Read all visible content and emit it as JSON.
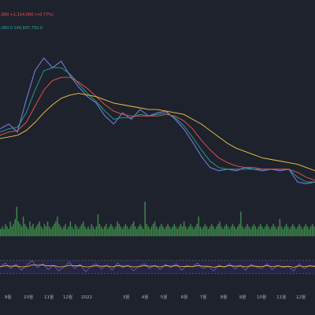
{
  "header": {
    "line1": ",000  +1,114,000 (+0.77%)",
    "line2": ",080.0  146,897,750.0"
  },
  "colors": {
    "background": "#1e222d",
    "price": "#6f7fd8",
    "ma_short": "#26a69a",
    "ma_mid": "#ef5350",
    "ma_long": "#f5c542",
    "volume": "#3d8c4a",
    "rsi": "#7e57c2",
    "rsi_signal": "#f5c542",
    "rsi_band": "#2a2a55",
    "header_red": "#ef5350",
    "header_green": "#26a69a"
  },
  "chart_data": [
    {
      "type": "line",
      "panel": "price",
      "x": [
        "2021-09",
        "2021-09-15",
        "2021-10",
        "2021-10-10",
        "2021-10-20",
        "2021-11",
        "2021-11-08",
        "2021-11-15",
        "2021-11-22",
        "2021-12",
        "2021-12-10",
        "2021-12-20",
        "2022-01",
        "2022-01-10",
        "2022-01-20",
        "2022-02",
        "2022-02-15",
        "2022-03",
        "2022-03-15",
        "2022-04",
        "2022-04-15",
        "2022-05",
        "2022-05-15",
        "2022-06",
        "2022-06-15",
        "2022-07",
        "2022-07-15",
        "2022-08",
        "2022-08-15",
        "2022-09",
        "2022-09-15",
        "2022-10",
        "2022-10-15",
        "2022-11",
        "2022-11-15",
        "2022-12",
        "2022-12-20"
      ],
      "series": [
        {
          "values": [
            52,
            55,
            50,
            70,
            88,
            96,
            90,
            94,
            85,
            78,
            72,
            68,
            60,
            55,
            62,
            58,
            64,
            60,
            62,
            63,
            58,
            52,
            44,
            35,
            28,
            26,
            27,
            26,
            28,
            27,
            26,
            27,
            26,
            27,
            19,
            18,
            19
          ]
        },
        {
          "values": [
            50,
            52,
            53,
            62,
            76,
            88,
            90,
            90,
            86,
            80,
            74,
            69,
            63,
            58,
            59,
            59,
            61,
            60,
            61,
            62,
            59,
            54,
            47,
            39,
            32,
            28,
            27,
            27,
            27,
            27,
            27,
            27,
            27,
            27,
            22,
            19,
            19
          ]
        },
        {
          "values": [
            48,
            50,
            51,
            56,
            66,
            76,
            82,
            84,
            84,
            81,
            77,
            72,
            67,
            63,
            61,
            60,
            60,
            60,
            60,
            61,
            60,
            57,
            52,
            45,
            39,
            34,
            31,
            29,
            28,
            28,
            27,
            27,
            27,
            27,
            25,
            22,
            20
          ]
        },
        {
          "values": [
            46,
            47,
            48,
            51,
            56,
            62,
            67,
            71,
            73,
            74,
            73,
            72,
            70,
            68,
            67,
            66,
            65,
            64,
            64,
            63,
            62,
            61,
            58,
            55,
            51,
            47,
            43,
            40,
            38,
            36,
            34,
            33,
            32,
            31,
            30,
            28,
            26
          ]
        }
      ],
      "ylim": [
        0,
        110
      ]
    },
    {
      "type": "bar",
      "panel": "volume",
      "values": [
        3,
        4,
        3,
        5,
        4,
        3,
        6,
        4,
        5,
        7,
        12,
        6,
        5,
        4,
        8,
        5,
        4,
        3,
        6,
        4,
        5,
        3,
        4,
        5,
        6,
        4,
        3,
        5,
        4,
        6,
        4,
        3,
        4,
        5,
        6,
        8,
        5,
        4,
        3,
        4,
        5,
        3,
        4,
        6,
        4,
        3,
        5,
        4,
        3,
        4,
        5,
        6,
        4,
        3,
        4,
        3,
        5,
        4,
        3,
        4,
        9,
        5,
        4,
        3,
        4,
        5,
        3,
        4,
        5,
        4,
        3,
        4,
        6,
        5,
        4,
        3,
        4,
        5,
        4,
        3,
        4,
        5,
        6,
        4,
        3,
        4,
        5,
        4,
        3,
        14,
        5,
        4,
        3,
        4,
        5,
        6,
        4,
        3,
        4,
        5,
        4,
        3,
        4,
        5,
        4,
        3,
        4,
        5,
        4,
        3,
        4,
        5,
        4,
        6,
        4,
        3,
        4,
        5,
        4,
        3,
        4,
        5,
        8,
        4,
        3,
        4,
        5,
        4,
        3,
        4,
        5,
        4,
        3,
        4,
        5,
        6,
        4,
        3,
        4,
        5,
        4,
        3,
        4,
        5,
        4,
        3,
        4,
        5,
        10,
        4,
        3,
        4,
        5,
        4,
        3,
        4,
        5,
        4,
        3,
        4,
        5,
        4,
        3,
        4,
        5,
        4,
        3,
        4,
        5,
        4,
        3,
        4,
        7,
        4,
        3,
        4,
        5,
        4,
        3,
        4,
        5,
        4,
        3,
        4,
        5,
        4,
        3,
        4,
        5,
        4,
        3,
        4,
        5,
        4
      ],
      "ylim": [
        0,
        16
      ]
    },
    {
      "type": "line",
      "panel": "rsi",
      "series": [
        {
          "values": [
            50,
            62,
            45,
            58,
            40,
            55,
            70,
            48,
            60,
            42,
            55,
            38,
            50,
            65,
            45,
            58,
            35,
            52,
            60,
            44,
            56,
            40,
            62,
            48,
            55,
            38,
            52,
            60,
            45,
            55,
            42,
            58,
            48,
            60,
            40,
            55,
            50,
            62,
            45,
            52,
            38,
            56,
            48,
            60,
            44,
            55,
            40,
            58,
            50,
            45,
            60,
            42,
            55,
            48,
            52,
            38,
            60,
            45,
            55,
            50
          ]
        },
        {
          "values": [
            50,
            54,
            52,
            53,
            50,
            51,
            56,
            55,
            56,
            53,
            54,
            50,
            51,
            55,
            53,
            54,
            50,
            51,
            54,
            52,
            53,
            50,
            54,
            52,
            53,
            50,
            51,
            54,
            52,
            53,
            50,
            54,
            52,
            54,
            51,
            52,
            51,
            54,
            52,
            52,
            49,
            52,
            51,
            54,
            52,
            53,
            50,
            53,
            52,
            51,
            54,
            51,
            53,
            51,
            52,
            49,
            53,
            51,
            53,
            52
          ]
        }
      ],
      "ylim": [
        0,
        100
      ],
      "band": [
        30,
        70
      ]
    }
  ],
  "xaxis": {
    "ticks": [
      {
        "label": "9월",
        "pos": 0.025
      },
      {
        "label": "10월",
        "pos": 0.09
      },
      {
        "label": "11월",
        "pos": 0.155
      },
      {
        "label": "12월",
        "pos": 0.215
      },
      {
        "label": "2022",
        "pos": 0.275
      },
      {
        "label": "3월",
        "pos": 0.4
      },
      {
        "label": "4월",
        "pos": 0.46
      },
      {
        "label": "5월",
        "pos": 0.52
      },
      {
        "label": "6월",
        "pos": 0.585
      },
      {
        "label": "7월",
        "pos": 0.645
      },
      {
        "label": "8월",
        "pos": 0.71
      },
      {
        "label": "9월",
        "pos": 0.77
      },
      {
        "label": "10월",
        "pos": 0.83
      },
      {
        "label": "11월",
        "pos": 0.893
      },
      {
        "label": "12월",
        "pos": 0.955
      }
    ]
  }
}
